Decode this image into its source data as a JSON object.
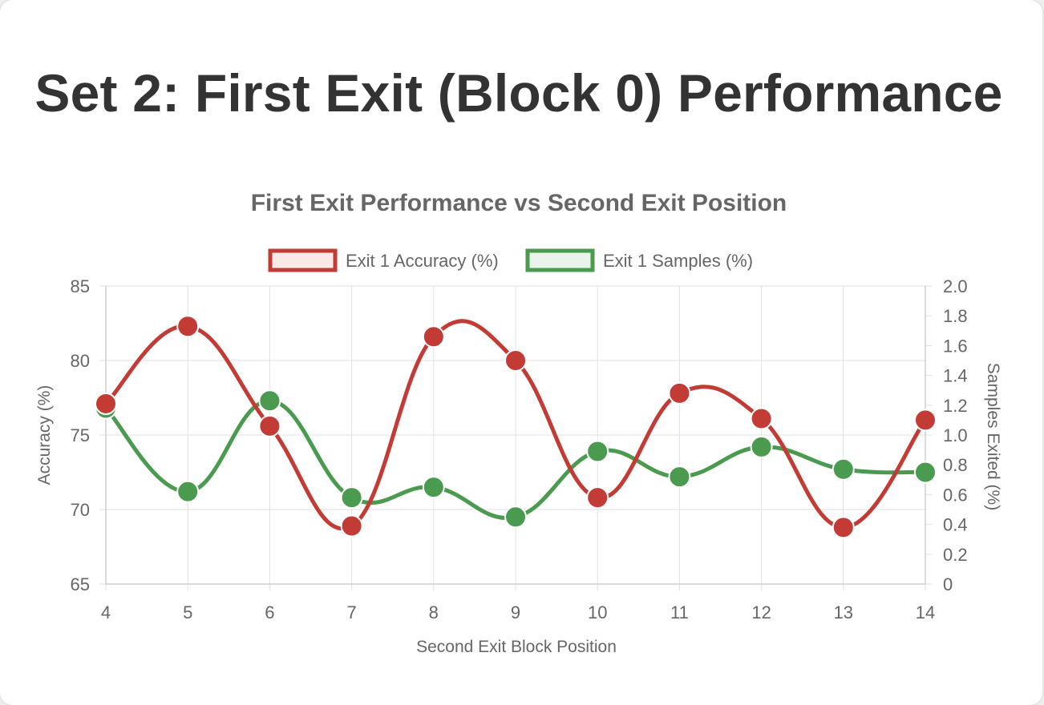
{
  "page": {
    "title": "Set 2: First Exit (Block 0) Performance"
  },
  "chart_data": {
    "type": "line",
    "title": "First Exit Performance vs Second Exit Position",
    "xlabel": "Second Exit Block Position",
    "ylabel": "Accuracy (%)",
    "y2label": "Samples Exited (%)",
    "categories": [
      4,
      5,
      6,
      7,
      8,
      9,
      10,
      11,
      12,
      13,
      14
    ],
    "ylim": [
      65,
      85
    ],
    "y_ticks": [
      "85",
      "80",
      "75",
      "70",
      "65"
    ],
    "y2lim": [
      0,
      2.0
    ],
    "y2_ticks": [
      "2.0",
      "1.8",
      "1.6",
      "1.4",
      "1.2",
      "1.0",
      "0.8",
      "0.6",
      "0.4",
      "0.2",
      "0"
    ],
    "grid": true,
    "legend_position": "top",
    "series": [
      {
        "name": "Exit 1 Accuracy (%)",
        "axis": "left",
        "color": "#c23b35",
        "fill": "#fbe9e8",
        "values": [
          77.1,
          82.3,
          75.6,
          68.9,
          81.6,
          80.0,
          70.8,
          77.8,
          76.1,
          68.8,
          76.0
        ]
      },
      {
        "name": "Exit 1 Samples (%)",
        "axis": "right",
        "color": "#4a9a4f",
        "fill": "#eaf4ea",
        "values": [
          1.18,
          0.62,
          1.23,
          0.58,
          0.65,
          0.45,
          0.89,
          0.72,
          0.92,
          0.77,
          0.75
        ]
      }
    ]
  }
}
